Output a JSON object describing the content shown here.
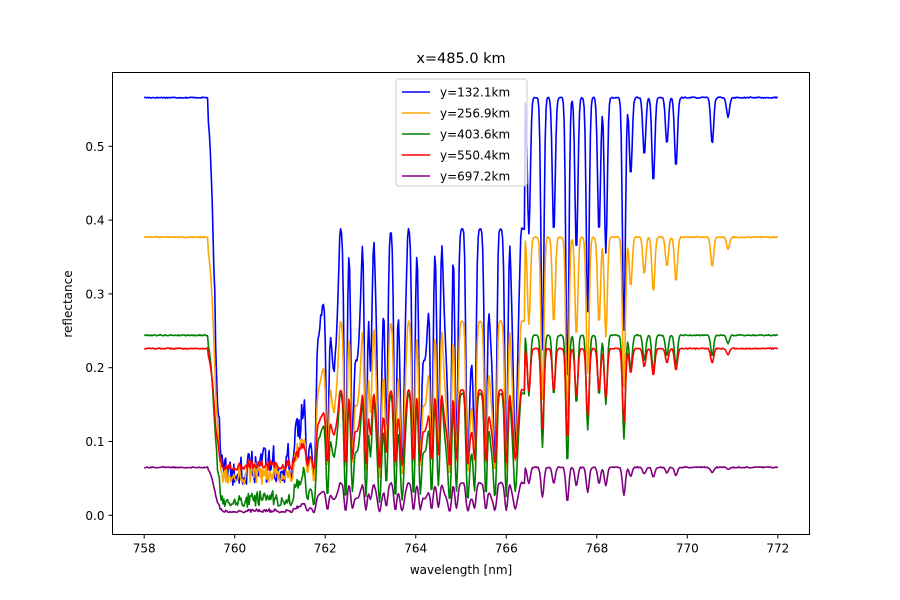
{
  "chart_data": {
    "type": "line",
    "title": "x=485.0 km",
    "xlabel": "wavelength [nm]",
    "ylabel": "reflectance",
    "xlim": [
      757.3,
      772.7
    ],
    "ylim": [
      -0.026,
      0.6
    ],
    "xticks": [
      758,
      760,
      762,
      764,
      766,
      768,
      770,
      772
    ],
    "xtick_labels": [
      "758",
      "760",
      "762",
      "764",
      "766",
      "768",
      "770",
      "772"
    ],
    "yticks": [
      0.0,
      0.1,
      0.2,
      0.3,
      0.4,
      0.5
    ],
    "ytick_labels": [
      "0.0",
      "0.1",
      "0.2",
      "0.3",
      "0.4",
      "0.5"
    ],
    "grid": false,
    "legend_position": "top-center",
    "x_range": [
      758.0,
      772.0
    ],
    "line_region_dips": [
      [
        759.75,
        0.5
      ],
      [
        759.85,
        0.45
      ],
      [
        759.95,
        0.55
      ],
      [
        760.05,
        0.7
      ],
      [
        760.2,
        0.75
      ],
      [
        761.0,
        0.8
      ],
      [
        761.1,
        0.7
      ],
      [
        761.25,
        0.85
      ],
      [
        761.6,
        0.8
      ],
      [
        761.75,
        0.92
      ],
      [
        762.05,
        0.88
      ],
      [
        762.45,
        0.93
      ],
      [
        762.6,
        0.83
      ],
      [
        762.9,
        0.9
      ],
      [
        763.0,
        0.55
      ],
      [
        763.2,
        0.9
      ],
      [
        763.35,
        0.8
      ],
      [
        763.55,
        0.92
      ],
      [
        763.7,
        0.85
      ],
      [
        763.95,
        0.9
      ],
      [
        764.1,
        0.85
      ],
      [
        764.35,
        0.88
      ],
      [
        764.5,
        0.8
      ],
      [
        764.75,
        0.9
      ],
      [
        764.9,
        0.85
      ],
      [
        765.15,
        0.88
      ],
      [
        765.3,
        0.82
      ],
      [
        765.55,
        0.9
      ],
      [
        765.75,
        0.85
      ],
      [
        766.0,
        0.9
      ],
      [
        766.2,
        0.7
      ],
      [
        766.5,
        0.35
      ],
      [
        766.8,
        0.65
      ],
      [
        767.05,
        0.35
      ],
      [
        767.35,
        0.75
      ],
      [
        767.55,
        0.4
      ],
      [
        767.8,
        0.55
      ],
      [
        768.05,
        0.35
      ],
      [
        768.2,
        0.4
      ],
      [
        768.6,
        0.6
      ],
      [
        768.75,
        0.2
      ],
      [
        769.05,
        0.15
      ],
      [
        769.25,
        0.22
      ],
      [
        769.55,
        0.12
      ],
      [
        769.75,
        0.18
      ],
      [
        770.55,
        0.12
      ],
      [
        770.9,
        0.05
      ]
    ],
    "series": [
      {
        "name": "y=132.1km",
        "color": "#0000ff",
        "continuum": 0.566,
        "floor": 0.04
      },
      {
        "name": "y=256.9km",
        "color": "#ffa500",
        "continuum": 0.377,
        "floor": 0.04
      },
      {
        "name": "y=403.6km",
        "color": "#008000",
        "continuum": 0.244,
        "floor": 0.01
      },
      {
        "name": "y=550.4km",
        "color": "#ff0000",
        "continuum": 0.226,
        "floor": 0.06
      },
      {
        "name": "y=697.2km",
        "color": "#800080",
        "continuum": 0.065,
        "floor": 0.003
      }
    ]
  }
}
